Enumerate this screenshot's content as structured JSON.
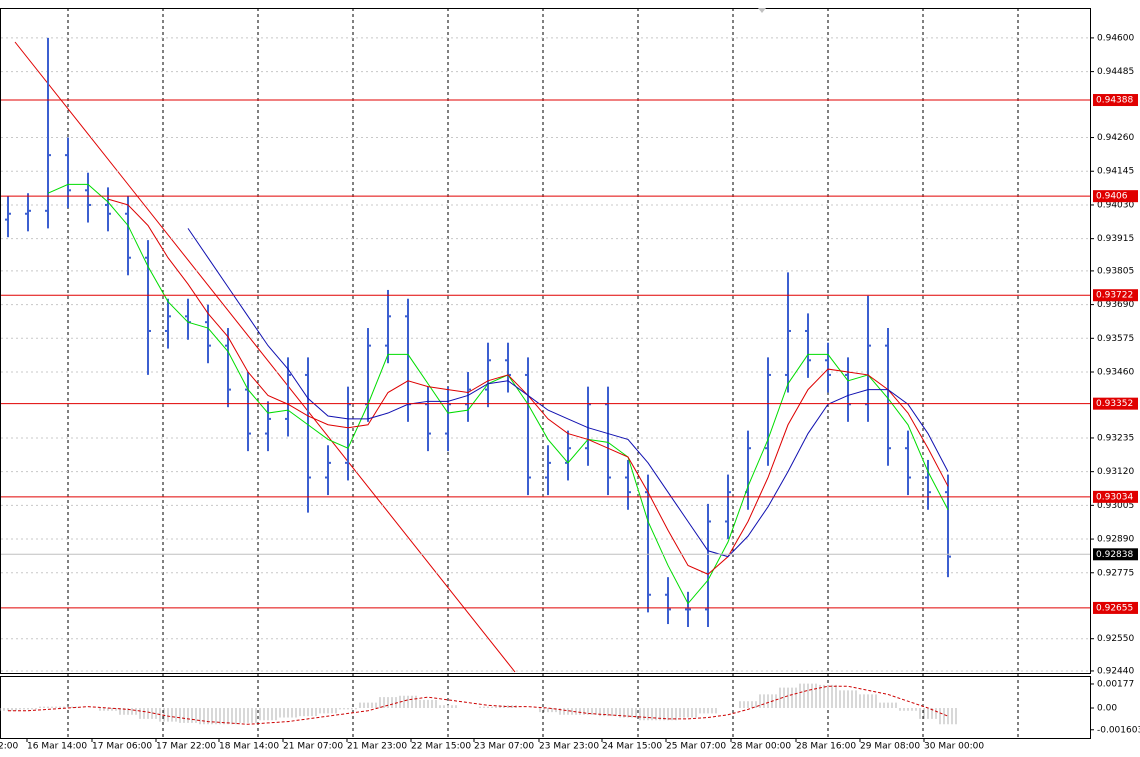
{
  "chart_data": {
    "type": "ohlc",
    "color": "#3c5fd0",
    "open": [
      0.9398,
      0.94,
      0.9401,
      0.942,
      0.9408,
      0.9403,
      0.94,
      0.9385,
      0.936,
      0.9365,
      0.9363,
      0.9355,
      0.934,
      0.9325,
      0.933,
      0.9345,
      0.931,
      0.9315,
      0.9335,
      0.9355,
      0.9365,
      0.9335,
      0.9325,
      0.9335,
      0.934,
      0.935,
      0.9345,
      0.931,
      0.9315,
      0.932,
      0.9335,
      0.931,
      0.9305,
      0.927,
      0.9265,
      0.9265,
      0.9295,
      0.9305,
      0.932,
      0.9345,
      0.936,
      0.935,
      0.9345,
      0.9335,
      0.9355,
      0.932,
      0.931,
      0.9305
    ],
    "high": [
      0.9406,
      0.9407,
      0.946,
      0.9426,
      0.9414,
      0.9409,
      0.9406,
      0.9391,
      0.9371,
      0.9371,
      0.9369,
      0.9361,
      0.9346,
      0.9336,
      0.9351,
      0.9351,
      0.9321,
      0.9341,
      0.9361,
      0.9374,
      0.9371,
      0.9341,
      0.9341,
      0.9346,
      0.9356,
      0.9356,
      0.9351,
      0.9321,
      0.9326,
      0.9341,
      0.9341,
      0.9316,
      0.9311,
      0.9276,
      0.9271,
      0.9301,
      0.9311,
      0.9326,
      0.9351,
      0.938,
      0.9366,
      0.9356,
      0.9351,
      0.9372,
      0.9361,
      0.9326,
      0.9316,
      0.9311
    ],
    "low": [
      0.9392,
      0.9394,
      0.9395,
      0.9402,
      0.9397,
      0.9394,
      0.9379,
      0.9345,
      0.9354,
      0.9357,
      0.9349,
      0.9334,
      0.9319,
      0.9319,
      0.9324,
      0.9298,
      0.9304,
      0.9309,
      0.9329,
      0.9349,
      0.9329,
      0.9319,
      0.9319,
      0.9329,
      0.9334,
      0.9339,
      0.9304,
      0.9304,
      0.9309,
      0.9314,
      0.9304,
      0.9299,
      0.9264,
      0.926,
      0.9259,
      0.9259,
      0.9289,
      0.9299,
      0.9314,
      0.9339,
      0.9344,
      0.9339,
      0.9329,
      0.9329,
      0.9314,
      0.9304,
      0.9299,
      0.9276
    ],
    "close": [
      0.94,
      0.9401,
      0.942,
      0.9408,
      0.9403,
      0.94,
      0.9385,
      0.936,
      0.9365,
      0.9363,
      0.9355,
      0.934,
      0.9325,
      0.933,
      0.9345,
      0.931,
      0.9315,
      0.9335,
      0.9355,
      0.9365,
      0.9335,
      0.9325,
      0.9335,
      0.934,
      0.935,
      0.9345,
      0.931,
      0.9315,
      0.932,
      0.9335,
      0.931,
      0.9305,
      0.927,
      0.9265,
      0.9265,
      0.9295,
      0.9305,
      0.932,
      0.9345,
      0.936,
      0.935,
      0.9345,
      0.9335,
      0.9355,
      0.932,
      0.931,
      0.9305,
      0.9283
    ],
    "series": [
      {
        "color": "#00dd00",
        "values": [
          null,
          null,
          0.9407,
          0.941,
          0.941,
          0.9404,
          0.9396,
          0.9382,
          0.937,
          0.9363,
          0.9361,
          0.9353,
          0.934,
          0.9332,
          0.9333,
          0.9328,
          0.9323,
          0.932,
          0.9335,
          0.9352,
          0.9352,
          0.9342,
          0.9332,
          0.9333,
          0.9342,
          0.9345,
          0.9335,
          0.9323,
          0.9315,
          0.9323,
          0.9322,
          0.9317,
          0.9295,
          0.928,
          0.9267,
          0.9275,
          0.9288,
          0.9307,
          0.9323,
          0.9342,
          0.9352,
          0.9352,
          0.9343,
          0.9345,
          0.9337,
          0.9328,
          0.9312,
          0.9299
        ]
      },
      {
        "color": "#dd0000",
        "values": [
          null,
          null,
          null,
          null,
          null,
          0.9405,
          0.9403,
          0.9396,
          0.9385,
          0.9376,
          0.9366,
          0.9358,
          0.9346,
          0.9338,
          0.9335,
          0.9331,
          0.9328,
          0.9327,
          0.9328,
          0.9339,
          0.9343,
          0.9341,
          0.934,
          0.9339,
          0.9343,
          0.9345,
          0.9338,
          0.933,
          0.9325,
          0.9323,
          0.932,
          0.9317,
          0.9305,
          0.9292,
          0.928,
          0.9277,
          0.9283,
          0.9295,
          0.931,
          0.9328,
          0.934,
          0.9347,
          0.9346,
          0.9345,
          0.934,
          0.9332,
          0.932,
          0.9307
        ]
      },
      {
        "color": "#1010b0",
        "values": [
          null,
          null,
          null,
          null,
          null,
          null,
          null,
          null,
          null,
          0.9395,
          0.9385,
          0.9375,
          0.9365,
          0.9355,
          0.9347,
          0.9337,
          0.9331,
          0.933,
          0.933,
          0.9332,
          0.9335,
          0.9336,
          0.9336,
          0.9338,
          0.9342,
          0.9343,
          0.9338,
          0.9333,
          0.933,
          0.9327,
          0.9325,
          0.9323,
          0.9315,
          0.9305,
          0.9295,
          0.9285,
          0.9283,
          0.929,
          0.93,
          0.9312,
          0.9325,
          0.9335,
          0.9338,
          0.934,
          0.934,
          0.9335,
          0.9325,
          0.9312
        ]
      }
    ],
    "levels": {
      "color": "#e00000",
      "values": [
        0.94388,
        0.9406,
        0.93722,
        0.93352,
        0.93034,
        0.92655
      ]
    },
    "current_price": 0.92838,
    "ylim": [
      0.92433,
      0.94702
    ],
    "yticks": [
      {
        "value": 0.946,
        "label": "0.94600"
      },
      0.94485,
      {
        "value": 0.9426,
        "label": "0.94260"
      },
      0.94145,
      {
        "value": 0.9403,
        "label": "0.94030"
      },
      0.93915,
      0.93805,
      {
        "value": 0.9369,
        "label": "0.93690"
      },
      0.93575,
      {
        "value": 0.9346,
        "label": "0.93460"
      },
      0.93235,
      {
        "value": 0.9312,
        "label": "0.93120"
      },
      0.93005,
      {
        "value": 0.9289,
        "label": "0.92890"
      },
      0.92775,
      {
        "value": 0.9255,
        "label": "0.92550"
      },
      {
        "value": 0.9244,
        "label": "0.92440"
      }
    ],
    "grid": true,
    "x_labels": [
      "2:00",
      "16 Mar 14:00",
      "17 Mar 06:00",
      "17 Mar 22:00",
      "18 Mar 14:00",
      "21 Mar 07:00",
      "21 Mar 23:00",
      "22 Mar 15:00",
      "23 Mar 07:00",
      "23 Mar 23:00",
      "24 Mar 15:00",
      "25 Mar 07:00",
      "28 Mar 00:00",
      "28 Mar 16:00",
      "29 Mar 08:00",
      "30 Mar 00:00"
    ],
    "oscillator": {
      "type": "bar",
      "color": "#b0b0b0",
      "values": [
        -0.0002,
        -0.0001,
        0.0001,
        0.0001,
        0,
        -0.0002,
        -0.0005,
        -0.0008,
        -0.001,
        -0.0011,
        -0.0012,
        -0.0012,
        -0.0011,
        -0.0009,
        -0.0007,
        -0.0006,
        -0.0004,
        -0.0001,
        0.0004,
        0.0008,
        0.0009,
        0.0006,
        0.0002,
        0,
        0.0001,
        0.0002,
        0,
        -0.0003,
        -0.0005,
        -0.0005,
        -0.0006,
        -0.0007,
        -0.0009,
        -0.0009,
        -0.0007,
        -0.0004,
        0,
        0.0005,
        0.001,
        0.0015,
        0.0018,
        0.0017,
        0.0013,
        0.001,
        0.0004,
        -0.0002,
        -0.0008,
        -0.0012
      ],
      "signal": {
        "color": "#cc0000",
        "values": [
          -0.0002,
          -0.0002,
          -0.0001,
          0,
          0.0001,
          0,
          -0.0001,
          -0.0003,
          -0.0006,
          -0.0008,
          -0.001,
          -0.0011,
          -0.0012,
          -0.0011,
          -0.001,
          -0.0008,
          -0.0006,
          -0.0004,
          -0.0002,
          0.0002,
          0.0006,
          0.0008,
          0.0006,
          0.0004,
          0.0002,
          0.0001,
          0.0001,
          0,
          -0.0002,
          -0.0004,
          -0.0005,
          -0.0006,
          -0.0007,
          -0.0008,
          -0.0008,
          -0.0007,
          -0.0005,
          -0.0001,
          0.0004,
          0.0009,
          0.0013,
          0.0016,
          0.0016,
          0.0013,
          0.001,
          0.0005,
          0,
          -0.0006
        ]
      },
      "ylim": [
        -0.00221,
        0.00221
      ],
      "yticks": [
        0.00177,
        {
          "value": 0,
          "label": "0.00"
        },
        -0.001603
      ]
    }
  }
}
